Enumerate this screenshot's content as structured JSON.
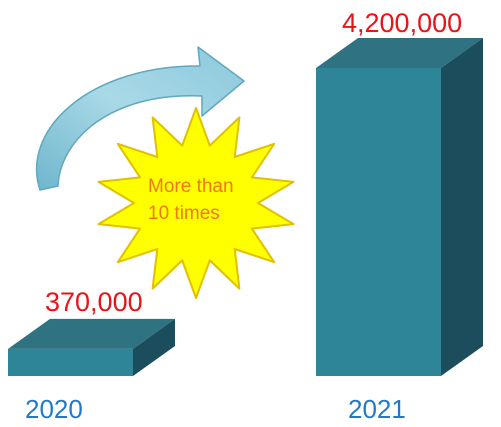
{
  "chart_data": {
    "type": "bar",
    "style": "3d-box",
    "categories": [
      "2020",
      "2021"
    ],
    "values": [
      370000,
      4200000
    ],
    "data_labels": [
      "370,000",
      "4,200,000"
    ],
    "title": "",
    "xlabel": "",
    "ylabel": "",
    "grid": false,
    "legend": "none",
    "annotation": {
      "lines": [
        "More than",
        "10 times"
      ],
      "shape": "starburst",
      "arrow": "curved-arrow-icon"
    }
  },
  "colors": {
    "bar_front": "#2e8597",
    "bar_top": "#2f7281",
    "bar_side": "#1c4d5d",
    "value_label": "#e8141a",
    "category_label": "#1f7ac8",
    "starburst_fill": "#ffff00",
    "starburst_stroke": "#e0c000",
    "annotation_text": "#f07818",
    "arrow_light": "#c7e9f1",
    "arrow_dark": "#7fbfd4"
  }
}
